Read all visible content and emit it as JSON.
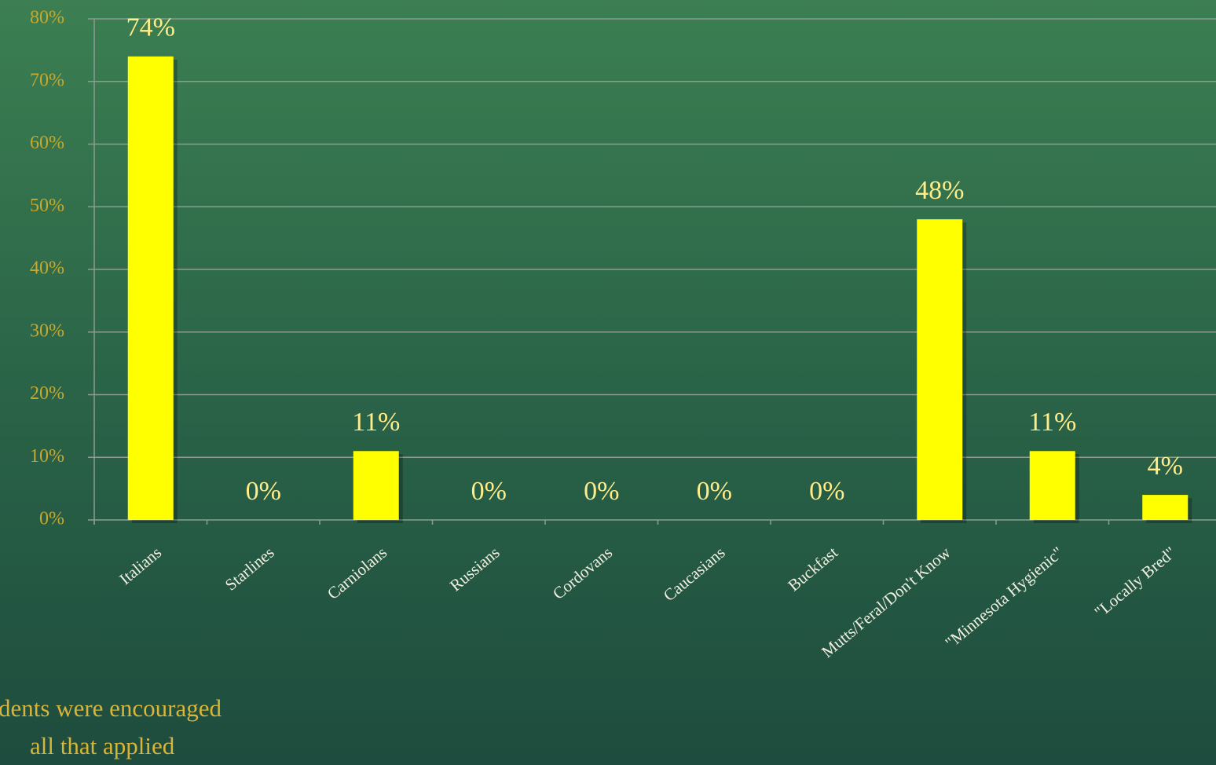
{
  "chart_data": {
    "type": "bar",
    "categories": [
      "Italians",
      "Starlines",
      "Carniolans",
      "Russians",
      "Cordovans",
      "Caucasians",
      "Buckfast",
      "Mutts/Feral/Don't Know",
      "\"Minnesota Hygienic\"",
      "\"Locally Bred\""
    ],
    "values": [
      74,
      0,
      11,
      0,
      0,
      0,
      0,
      48,
      11,
      4
    ],
    "value_labels": [
      "74%",
      "0%",
      "11%",
      "0%",
      "0%",
      "0%",
      "0%",
      "48%",
      "11%",
      "4%"
    ],
    "color": "#ffff00",
    "ylim": [
      0,
      80
    ],
    "yticks": [
      {
        "value": 0,
        "label": "0%"
      },
      {
        "value": 10,
        "label": "10%"
      },
      {
        "value": 20,
        "label": "20%"
      },
      {
        "value": 30,
        "label": "30%"
      },
      {
        "value": 40,
        "label": "40%"
      },
      {
        "value": 50,
        "label": "50%"
      },
      {
        "value": 60,
        "label": "60%"
      },
      {
        "value": 70,
        "label": "70%"
      },
      {
        "value": 80,
        "label": "80%"
      }
    ],
    "grid": true,
    "annotations": [
      "dents were encouraged",
      "all that applied"
    ]
  }
}
